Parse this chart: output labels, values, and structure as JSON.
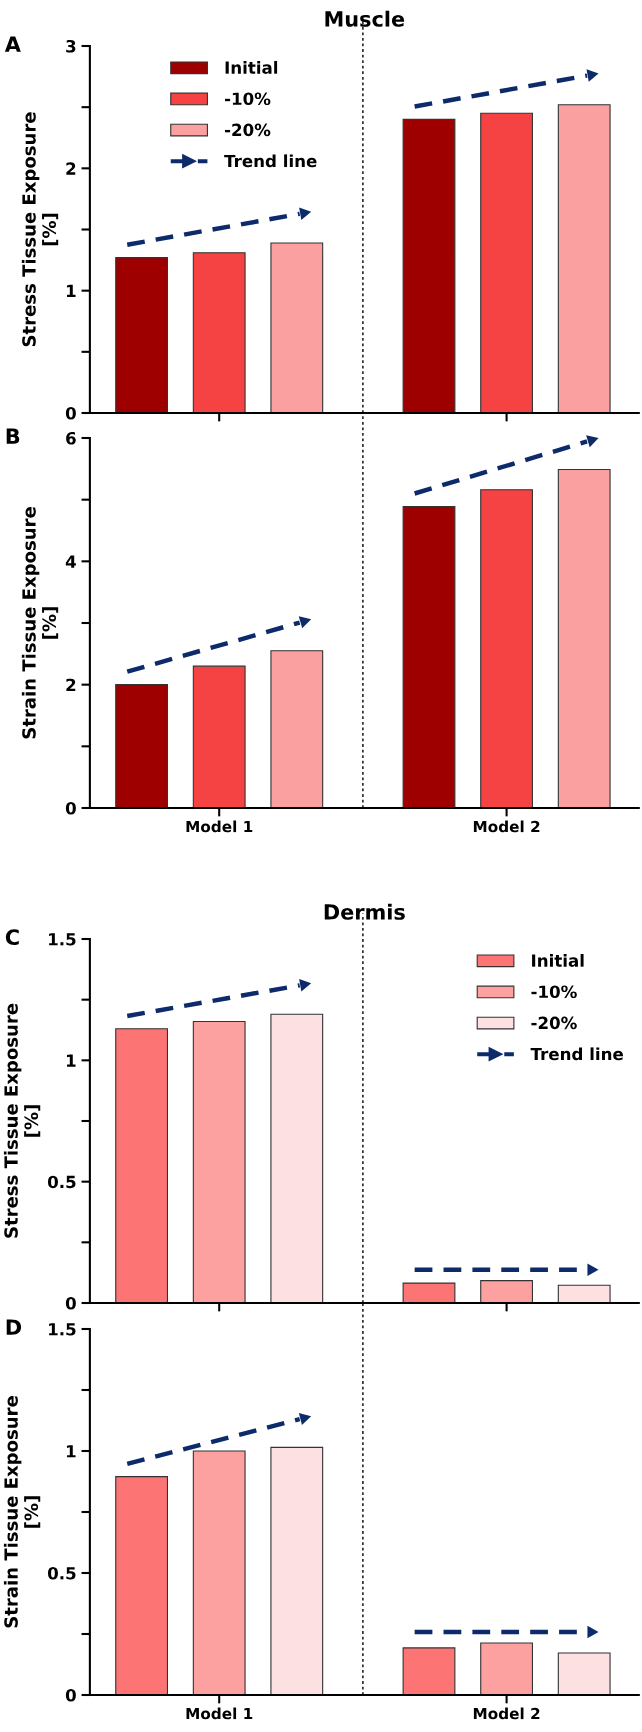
{
  "chart_data": [
    {
      "type": "bar",
      "title": "Muscle",
      "ylabel": "Stress Tissue Exposure\n[%]",
      "annotations": [
        "A"
      ],
      "categories": [
        null,
        null
      ],
      "series": [
        {
          "name": "Initial",
          "color": "#9e0000",
          "values": [
            1.27,
            2.4
          ]
        },
        {
          "name": "-10%",
          "color": "#f54242",
          "values": [
            1.31,
            2.45
          ]
        },
        {
          "name": "-20%",
          "color": "#fba0a0",
          "values": [
            1.39,
            2.52
          ]
        },
        {
          "name": "Trend line",
          "type": "line",
          "color": "#0d2a6b",
          "line_style": "dashed",
          "values": [
            null,
            null
          ]
        }
      ],
      "ylim": [
        0,
        3
      ],
      "yticks": [
        0,
        {
          "value": 0.5,
          "label": null
        },
        1,
        {
          "value": 1.5,
          "label": null
        },
        2,
        {
          "value": 2.5,
          "label": null
        },
        3
      ],
      "legend": "top left",
      "tick_labels": "y",
      "grid": false
    },
    {
      "type": "bar",
      "ylabel": "Strain Tissue Exposure\n[%]",
      "annotations": [
        "B"
      ],
      "categories": [
        "Model 1",
        "Model 2"
      ],
      "series": [
        {
          "color": "#9e0000",
          "values": [
            2.0,
            4.89
          ]
        },
        {
          "color": "#f54242",
          "values": [
            2.3,
            5.16
          ]
        },
        {
          "color": "#fba0a0",
          "values": [
            2.55,
            5.49
          ]
        }
      ],
      "ylim": [
        0,
        6
      ],
      "yticks": [
        0,
        {
          "value": 1,
          "label": null
        },
        2,
        {
          "value": 3,
          "label": null
        },
        4,
        {
          "value": 5,
          "label": null
        },
        6
      ],
      "legend": false,
      "grid": false
    },
    {
      "type": "bar",
      "title": "Dermis",
      "ylabel": "Stress Tissue Exposure\n[%]",
      "annotations": [
        "C"
      ],
      "categories": [
        null,
        null
      ],
      "series": [
        {
          "name": "Initial",
          "color": "#fc7474",
          "values": [
            1.13,
            0.082
          ]
        },
        {
          "name": "-10%",
          "color": "#fca0a0",
          "values": [
            1.16,
            0.092
          ]
        },
        {
          "name": "-20%",
          "color": "#fde0e2",
          "values": [
            1.19,
            0.073
          ]
        },
        {
          "name": "Trend line",
          "type": "line",
          "color": "#0d2a6b",
          "line_style": "dashed",
          "values": [
            null,
            null
          ]
        }
      ],
      "ylim": [
        0,
        1.5
      ],
      "yticks": [
        0,
        {
          "value": 0.25,
          "label": null
        },
        0.5,
        {
          "value": 0.75,
          "label": null
        },
        1,
        {
          "value": 1.25,
          "label": null
        },
        1.5
      ],
      "legend": "top right",
      "tick_labels": "y",
      "grid": false
    },
    {
      "type": "bar",
      "ylabel": "Strain Tissue Exposure\n[%]",
      "annotations": [
        "D"
      ],
      "categories": [
        "Model 1",
        "Model 2"
      ],
      "series": [
        {
          "color": "#fc7474",
          "values": [
            0.895,
            0.193
          ]
        },
        {
          "color": "#fca0a0",
          "values": [
            1.0,
            0.213
          ]
        },
        {
          "color": "#fde0e2",
          "values": [
            1.015,
            0.172
          ]
        }
      ],
      "ylim": [
        0,
        1.5
      ],
      "yticks": [
        0,
        {
          "value": 0.25,
          "label": null
        },
        0.5,
        {
          "value": 0.75,
          "label": null
        },
        1,
        {
          "value": 1.25,
          "label": null
        },
        1.5
      ],
      "legend": false,
      "grid": false
    }
  ]
}
